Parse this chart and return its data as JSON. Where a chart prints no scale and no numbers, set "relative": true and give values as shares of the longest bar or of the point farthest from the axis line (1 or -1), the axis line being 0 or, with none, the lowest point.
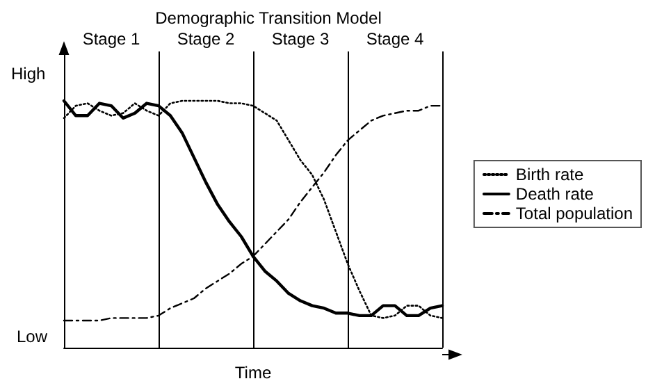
{
  "chart_data": {
    "type": "line",
    "title": "Demographic Transition Model",
    "xlabel": "Time",
    "relative": true,
    "categories": [
      null,
      null,
      null,
      null,
      "Stage 1",
      null,
      null,
      null,
      null,
      null,
      null,
      null,
      "Stage 2",
      null,
      null,
      null,
      null,
      null,
      null,
      null,
      "Stage 3",
      null,
      null,
      null,
      null,
      null,
      null,
      null,
      "Stage 4",
      null,
      null,
      null,
      null
    ],
    "annotations": [
      "High",
      "Low"
    ],
    "grid": "x",
    "legend": "right",
    "marker": "none",
    "series": [
      {
        "name": "Birth rate",
        "color": "#000000",
        "line_style": "dotted",
        "values": [
          0.93,
          0.98,
          0.99,
          0.96,
          0.94,
          0.95,
          0.99,
          0.96,
          0.94,
          0.99,
          1.0,
          1.0,
          1.0,
          1.0,
          0.99,
          0.99,
          0.98,
          0.95,
          0.92,
          0.84,
          0.76,
          0.7,
          0.6,
          0.47,
          0.34,
          0.23,
          0.13,
          0.12,
          0.13,
          0.17,
          0.17,
          0.13,
          0.12
        ]
      },
      {
        "name": "Death rate",
        "color": "#000000",
        "line_style": "solid",
        "values": [
          1.0,
          0.94,
          0.94,
          0.99,
          0.98,
          0.93,
          0.95,
          0.99,
          0.98,
          0.94,
          0.87,
          0.77,
          0.67,
          0.58,
          0.51,
          0.45,
          0.37,
          0.31,
          0.27,
          0.22,
          0.19,
          0.17,
          0.16,
          0.14,
          0.14,
          0.13,
          0.13,
          0.17,
          0.17,
          0.13,
          0.13,
          0.16,
          0.17
        ]
      },
      {
        "name": "Total population",
        "color": "#000000",
        "line_style": "dashdot",
        "values": [
          0.11,
          0.11,
          0.11,
          0.11,
          0.12,
          0.12,
          0.12,
          0.12,
          0.13,
          0.16,
          0.18,
          0.2,
          0.24,
          0.27,
          0.3,
          0.34,
          0.37,
          0.42,
          0.47,
          0.52,
          0.59,
          0.65,
          0.71,
          0.78,
          0.84,
          0.88,
          0.92,
          0.94,
          0.95,
          0.96,
          0.96,
          0.98,
          0.98
        ]
      }
    ]
  }
}
